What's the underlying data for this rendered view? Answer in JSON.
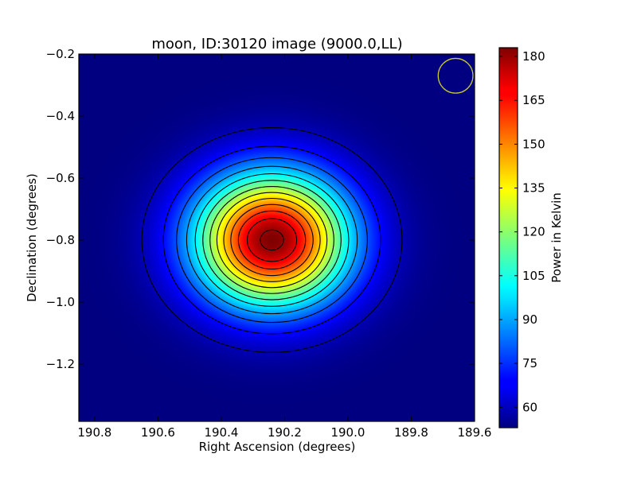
{
  "chart_data": {
    "type": "heatmap",
    "title": "moon, ID:30120 image (9000.0,LL)",
    "xlabel": "Right Ascension (degrees)",
    "ylabel": "Declination (degrees)",
    "xlim": [
      190.85,
      189.6
    ],
    "ylim": [
      -1.385,
      -0.2
    ],
    "x_inverted": true,
    "x_ticks": [
      {
        "value": 190.8,
        "label": "190.8"
      },
      {
        "value": 190.6,
        "label": "190.6"
      },
      {
        "value": 190.4,
        "label": "190.4"
      },
      {
        "value": 190.2,
        "label": "190.2"
      },
      {
        "value": 190.0,
        "label": "190.0"
      },
      {
        "value": 189.8,
        "label": "189.8"
      },
      {
        "value": 189.6,
        "label": "189.6"
      }
    ],
    "y_ticks": [
      {
        "value": -0.2,
        "label": "−0.2"
      },
      {
        "value": -0.4,
        "label": "−0.4"
      },
      {
        "value": -0.6,
        "label": "−0.6"
      },
      {
        "value": -0.8,
        "label": "−0.8"
      },
      {
        "value": -1.0,
        "label": "−1.0"
      },
      {
        "value": -1.2,
        "label": "−1.2"
      }
    ],
    "colormap": "jet",
    "colorbar": {
      "label": "Power in Kelvin",
      "min": 53,
      "max": 183,
      "ticks": [
        {
          "value": 60,
          "label": "60"
        },
        {
          "value": 75,
          "label": "75"
        },
        {
          "value": 90,
          "label": "90"
        },
        {
          "value": 105,
          "label": "105"
        },
        {
          "value": 120,
          "label": "120"
        },
        {
          "value": 135,
          "label": "135"
        },
        {
          "value": 150,
          "label": "150"
        },
        {
          "value": 165,
          "label": "165"
        },
        {
          "value": 180,
          "label": "180"
        }
      ]
    },
    "source": {
      "center_ra": 190.24,
      "center_dec": -0.8,
      "peak_kelvin": 183,
      "background_kelvin": 53,
      "sigma_ra_deg": 0.17,
      "sigma_dec_deg": 0.15
    },
    "contour_levels": [
      60,
      70,
      80,
      90,
      100,
      110,
      120,
      130,
      140,
      150,
      160,
      170,
      180
    ],
    "beam_circle": {
      "ra": 189.66,
      "dec": -0.27,
      "radius_deg": 0.055,
      "color": "#c8c832"
    },
    "grid": false
  }
}
